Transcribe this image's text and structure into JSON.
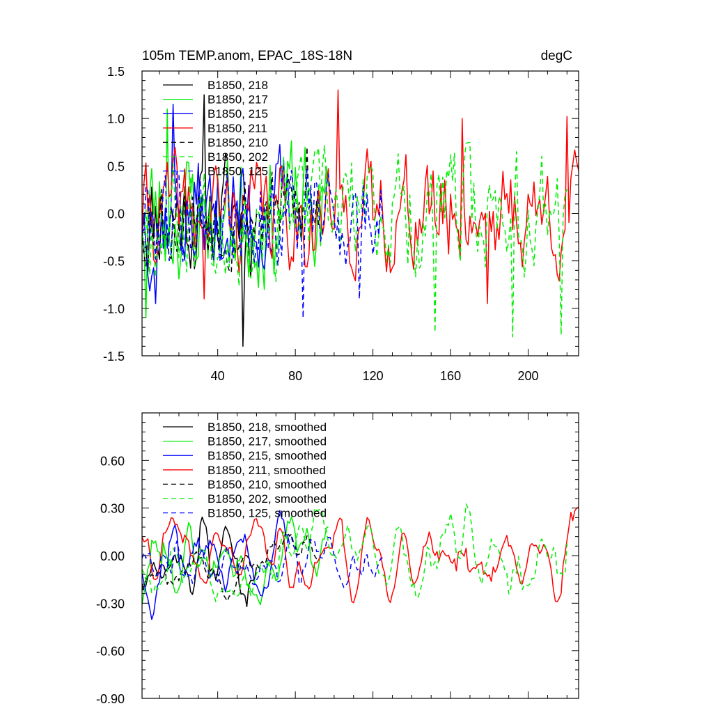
{
  "chart_data": [
    {
      "type": "line",
      "title": "105m TEMP.anom, EPAC_18S-18N",
      "units": "degC",
      "xlabel": "",
      "ylabel": "",
      "xlim": [
        1,
        226
      ],
      "ylim": [
        -1.5,
        1.5
      ],
      "xticks": [
        40,
        80,
        120,
        160,
        200
      ],
      "yticks": [
        -1.5,
        -1.0,
        -0.5,
        0.0,
        0.5,
        1.0,
        1.5
      ],
      "ytick_labels": [
        "-1.5",
        "-1.0",
        "-0.5",
        "0.0",
        "0.5",
        "1.0",
        "1.5"
      ],
      "legend_position": "top-left",
      "series": [
        {
          "name": "B1850, 218",
          "color": "#000000",
          "dash": "solid",
          "length": 60,
          "seed": 11,
          "amp": 0.5,
          "scale": 1.0,
          "events": [
            [
              33,
              1.25
            ],
            [
              53,
              -1.4
            ]
          ]
        },
        {
          "name": "B1850, 217",
          "color": "#00ee00",
          "dash": "solid",
          "length": 97,
          "seed": 23,
          "amp": 0.55,
          "scale": 1.0,
          "events": [
            [
              3,
              -1.1
            ],
            [
              14,
              1.1
            ]
          ]
        },
        {
          "name": "B1850, 215",
          "color": "#0000ff",
          "dash": "solid",
          "length": 77,
          "seed": 37,
          "amp": 0.5,
          "scale": 1.0,
          "events": [
            [
              8,
              -0.95
            ],
            [
              17,
              1.15
            ]
          ]
        },
        {
          "name": "B1850, 211",
          "color": "#ff0000",
          "dash": "solid",
          "length": 226,
          "seed": 41,
          "amp": 0.45,
          "scale": 1.0,
          "events": [
            [
              102,
              1.3
            ],
            [
              166,
              1.0
            ],
            [
              179,
              -0.95
            ],
            [
              220,
              1.02
            ],
            [
              33,
              -0.9
            ]
          ]
        },
        {
          "name": "B1850, 210",
          "color": "#000000",
          "dash": "dashed",
          "length": 92,
          "seed": 53,
          "amp": 0.4,
          "scale": 1.0,
          "events": [
            [
              86,
              0.7
            ]
          ]
        },
        {
          "name": "B1850, 202",
          "color": "#00ee00",
          "dash": "dashed",
          "length": 220,
          "seed": 67,
          "amp": 0.5,
          "scale": 1.0,
          "events": [
            [
              152,
              -1.25
            ],
            [
              192,
              -1.3
            ],
            [
              217,
              -1.28
            ],
            [
              194,
              0.65
            ]
          ]
        },
        {
          "name": "B1850, 125",
          "color": "#0000ff",
          "dash": "dashed",
          "length": 125,
          "seed": 79,
          "amp": 0.45,
          "scale": 1.0,
          "events": [
            [
              84,
              -1.1
            ],
            [
              113,
              -0.9
            ]
          ]
        }
      ]
    },
    {
      "type": "line",
      "title": "",
      "xlabel": "",
      "ylabel": "",
      "xlim": [
        1,
        226
      ],
      "ylim": [
        -0.9,
        0.9
      ],
      "xticks": [
        40,
        80,
        120,
        160,
        200
      ],
      "yticks": [
        -0.9,
        -0.6,
        -0.3,
        0.0,
        0.3,
        0.6
      ],
      "ytick_labels": [
        "-0.90",
        "-0.60",
        "-0.30",
        "0.00",
        "0.30",
        "0.60"
      ],
      "show_xtick_labels": false,
      "legend_position": "top-left",
      "series": [
        {
          "name": "B1850, 218, smoothed",
          "color": "#000000",
          "dash": "solid",
          "length": 60,
          "seed": 11,
          "amp": 0.5,
          "scale": 0.55,
          "events": [
            [
              33,
              1.25
            ],
            [
              53,
              -1.4
            ]
          ]
        },
        {
          "name": "B1850, 217, smoothed",
          "color": "#00ee00",
          "dash": "solid",
          "length": 97,
          "seed": 23,
          "amp": 0.55,
          "scale": 0.55,
          "events": [
            [
              3,
              -1.1
            ],
            [
              14,
              1.1
            ]
          ]
        },
        {
          "name": "B1850, 215, smoothed",
          "color": "#0000ff",
          "dash": "solid",
          "length": 77,
          "seed": 37,
          "amp": 0.5,
          "scale": 0.55,
          "events": [
            [
              8,
              -0.95
            ],
            [
              17,
              1.15
            ]
          ]
        },
        {
          "name": "B1850, 211, smoothed",
          "color": "#ff0000",
          "dash": "solid",
          "length": 226,
          "seed": 41,
          "amp": 0.45,
          "scale": 0.55,
          "events": [
            [
              102,
              1.3
            ],
            [
              166,
              1.0
            ],
            [
              179,
              -0.95
            ],
            [
              220,
              1.02
            ],
            [
              33,
              -0.9
            ]
          ]
        },
        {
          "name": "B1850, 210, smoothed",
          "color": "#000000",
          "dash": "dashed",
          "length": 92,
          "seed": 53,
          "amp": 0.4,
          "scale": 0.55,
          "events": [
            [
              86,
              0.7
            ]
          ]
        },
        {
          "name": "B1850, 202, smoothed",
          "color": "#00ee00",
          "dash": "dashed",
          "length": 220,
          "seed": 67,
          "amp": 0.5,
          "scale": 0.55,
          "events": [
            [
              152,
              -1.25
            ],
            [
              192,
              -1.3
            ],
            [
              217,
              -1.28
            ],
            [
              194,
              0.65
            ]
          ]
        },
        {
          "name": "B1850, 125, smoothed",
          "color": "#0000ff",
          "dash": "dashed",
          "length": 125,
          "seed": 79,
          "amp": 0.45,
          "scale": 0.55,
          "events": [
            [
              84,
              -1.1
            ],
            [
              113,
              -0.9
            ]
          ]
        }
      ]
    }
  ]
}
